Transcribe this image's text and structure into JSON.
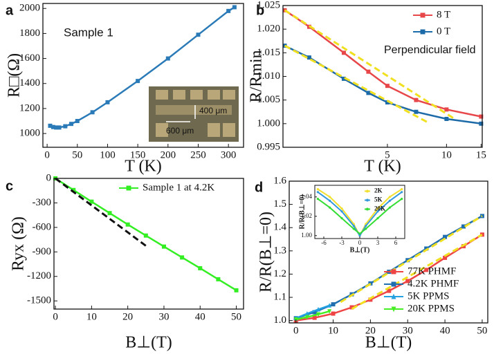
{
  "chart_data": [
    {
      "type": "line",
      "panel_label": "a",
      "xlabel": "T (K)",
      "ylabel": "R□(Ω)",
      "annotations": [
        "Sample 1",
        "400 μm",
        "600 μm"
      ],
      "xlim": [
        -7,
        325
      ],
      "ylim": [
        890,
        2040
      ],
      "xticks": [
        0,
        50,
        100,
        150,
        200,
        250,
        300
      ],
      "yticks": [
        1000,
        1200,
        1400,
        1600,
        1800,
        2000
      ],
      "series": [
        {
          "color": "#2a7ab8",
          "marker": "square",
          "x": [
            5,
            10,
            15,
            20,
            30,
            40,
            50,
            75,
            100,
            150,
            200,
            250,
            300,
            310
          ],
          "values": [
            1062,
            1052,
            1048,
            1048,
            1058,
            1077,
            1100,
            1170,
            1250,
            1420,
            1600,
            1790,
            1980,
            2010
          ]
        }
      ]
    },
    {
      "type": "line",
      "panel_label": "b",
      "xlabel": "T (K)",
      "ylabel": "R/Rmin",
      "xscale": "log",
      "annotations": [
        "Perpendicular field"
      ],
      "legend": "upper right",
      "xlim": [
        1.47,
        15.2
      ],
      "ylim": [
        0.995,
        1.025
      ],
      "xticks": [
        5,
        10,
        15
      ],
      "yticks": [
        0.995,
        {
          "value": 1.0,
          "label": "1.000"
        },
        1.005,
        {
          "value": 1.01,
          "label": "1.010"
        },
        1.015,
        {
          "value": 1.02,
          "label": "1.020"
        },
        1.025
      ],
      "series": [
        {
          "name": "8 T",
          "color": "#e8474a",
          "marker": "square",
          "x": [
            1.5,
            2,
            3,
            4,
            5,
            7,
            10,
            15
          ],
          "values": [
            1.024,
            1.0205,
            1.015,
            1.011,
            1.008,
            1.005,
            1.003,
            1.0015
          ]
        },
        {
          "name": "0 T",
          "color": "#1c6aa8",
          "marker": "square",
          "x": [
            1.5,
            2,
            3,
            4,
            5,
            7,
            10,
            15
          ],
          "values": [
            1.0165,
            1.014,
            1.0095,
            1.0065,
            1.0045,
            1.0025,
            1.001,
            1.0
          ]
        },
        {
          "color": "#f0e020",
          "dashed": true,
          "x": [
            1.5,
            11
          ],
          "values": [
            1.024,
            1.001
          ]
        },
        {
          "color": "#f0e020",
          "dashed": true,
          "x": [
            1.5,
            8
          ],
          "values": [
            1.0165,
            1.0003
          ]
        }
      ]
    },
    {
      "type": "line",
      "panel_label": "c",
      "xlabel": "B⊥(T)",
      "ylabel": "Ryx (Ω)",
      "legend": "upper right",
      "xlim": [
        -0.4,
        52
      ],
      "ylim": [
        -1600,
        0
      ],
      "xticks": [
        0,
        10,
        20,
        30,
        40,
        50
      ],
      "yticks": [
        0,
        -300,
        -600,
        -900,
        -1200,
        -1500
      ],
      "series": [
        {
          "name": "Sample 1 at 4.2K",
          "color": "#33ee22",
          "marker": "square",
          "x": [
            0,
            5,
            10,
            15,
            20,
            25,
            30,
            35,
            40,
            45,
            50
          ],
          "values": [
            0,
            -142,
            -285,
            -425,
            -565,
            -700,
            -835,
            -968,
            -1100,
            -1235,
            -1370
          ]
        },
        {
          "color": "#111111",
          "dashed": true,
          "x": [
            0,
            25
          ],
          "values": [
            0,
            -825
          ]
        }
      ]
    },
    {
      "type": "line",
      "panel_label": "d",
      "xlabel": "B⊥(T)",
      "ylabel": "R/R(B⊥=0)",
      "legend": "lower right",
      "xlim": [
        -1.8,
        51.5
      ],
      "ylim": [
        0.99,
        1.6
      ],
      "xticks": [
        0,
        10,
        20,
        30,
        40,
        50
      ],
      "yticks": [
        {
          "value": 1.0,
          "label": "1.0"
        },
        1.1,
        1.2,
        1.3,
        1.4,
        1.5,
        1.6
      ],
      "series": [
        {
          "name": "77K  PHMF",
          "color": "#ee4444",
          "marker": "square",
          "x": [
            0,
            5,
            10,
            15,
            20,
            25,
            30,
            35,
            40,
            45,
            50
          ],
          "values": [
            1.0,
            1.012,
            1.03,
            1.057,
            1.09,
            1.128,
            1.17,
            1.218,
            1.27,
            1.32,
            1.37
          ]
        },
        {
          "name": "4.2K  PHMF",
          "color": "#1f6fb0",
          "marker": "square",
          "x": [
            0,
            5,
            10,
            15,
            20,
            25,
            30,
            35,
            40,
            45,
            50
          ],
          "values": [
            1.01,
            1.036,
            1.07,
            1.113,
            1.16,
            1.21,
            1.26,
            1.31,
            1.36,
            1.405,
            1.45
          ]
        },
        {
          "name": "5K    PPMS",
          "color": "#22a0e0",
          "marker": "triangle",
          "x": [
            0,
            3,
            6,
            9
          ],
          "values": [
            1.01,
            1.03,
            1.048,
            1.065
          ]
        },
        {
          "name": "20K  PPMS",
          "color": "#44ee22",
          "marker": "triangle-down",
          "x": [
            0,
            3,
            6,
            9
          ],
          "values": [
            1.005,
            1.015,
            1.027,
            1.04
          ]
        },
        {
          "color": "#f0e020",
          "dashed": true,
          "x": [
            12,
            50
          ],
          "values": [
            1.08,
            1.45
          ]
        },
        {
          "color": "#f0e020",
          "dashed": true,
          "x": [
            15,
            50
          ],
          "values": [
            1.05,
            1.37
          ]
        }
      ]
    },
    {
      "type": "line",
      "xlabel": "B⊥(T)",
      "ylabel": "R/R(B⊥=0)",
      "legend": "upper right",
      "xlim": [
        -7.5,
        7.5
      ],
      "ylim": [
        0.997,
        1.052
      ],
      "xticks": [
        -6,
        -3,
        0,
        3,
        6
      ],
      "yticks": [
        {
          "value": 1.0,
          "label": "1.00"
        },
        {
          "value": 1.02,
          "label": "1.02"
        },
        {
          "value": 1.04,
          "label": "1.04"
        }
      ],
      "series": [
        {
          "name": "2K",
          "color": "#f2e030",
          "marker": "circle",
          "x": [
            -7,
            -5,
            -3,
            -1,
            0,
            1,
            3,
            5,
            7
          ],
          "values": [
            1.048,
            1.04,
            1.028,
            1.012,
            1.0,
            1.012,
            1.028,
            1.04,
            1.048
          ]
        },
        {
          "name": "5K",
          "color": "#3399dd",
          "marker": "circle",
          "x": [
            -7,
            -5,
            -3,
            -1,
            0,
            1,
            3,
            5,
            7
          ],
          "values": [
            1.045,
            1.036,
            1.025,
            1.01,
            1.0,
            1.01,
            1.025,
            1.036,
            1.045
          ]
        },
        {
          "name": "20K",
          "color": "#33dd33",
          "marker": "circle",
          "x": [
            -7,
            -5,
            -3,
            -1,
            0,
            1,
            3,
            5,
            7
          ],
          "values": [
            1.038,
            1.029,
            1.018,
            1.007,
            1.002,
            1.007,
            1.018,
            1.029,
            1.038
          ]
        }
      ]
    }
  ]
}
